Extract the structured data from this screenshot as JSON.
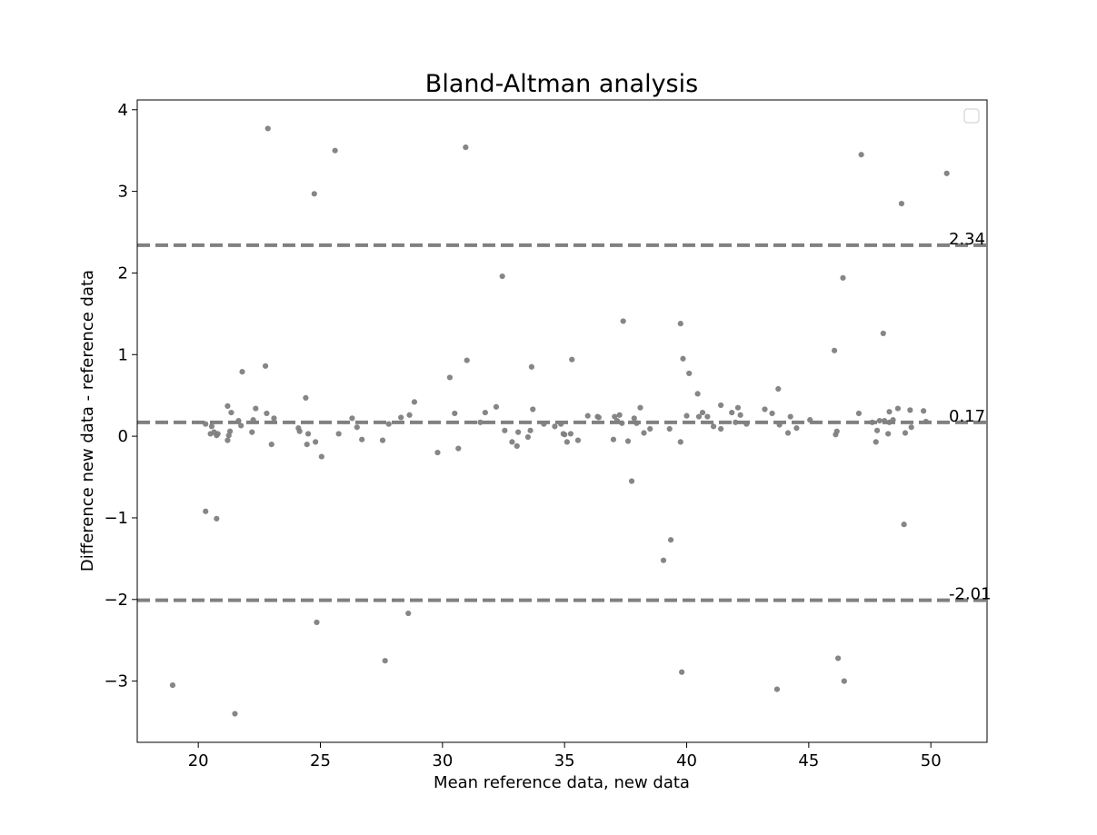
{
  "chart_data": {
    "type": "scatter",
    "title": "Bland-Altman analysis",
    "xlabel": "Mean reference data, new data",
    "ylabel": "Difference new data - reference data",
    "xlim": [
      17.5,
      52.3
    ],
    "ylim": [
      -3.75,
      4.12
    ],
    "x_ticks": [
      20,
      25,
      30,
      35,
      40,
      45,
      50
    ],
    "y_ticks": [
      -3,
      -2,
      -1,
      0,
      1,
      2,
      3,
      4
    ],
    "x_tick_labels": [
      "20",
      "25",
      "30",
      "35",
      "40",
      "45",
      "50"
    ],
    "y_tick_labels": [
      "−3",
      "−2",
      "−1",
      "0",
      "1",
      "2",
      "3",
      "4"
    ],
    "grid": false,
    "legend": "top-right",
    "legend_entries": [],
    "marker_color": "#808080",
    "line_color": "#808080",
    "reference_lines": [
      {
        "value": 2.34,
        "label": "2.34"
      },
      {
        "value": 0.17,
        "label": "0.17"
      },
      {
        "value": -2.01,
        "label": "-2.01"
      }
    ],
    "points": [
      [
        18.95,
        -3.05
      ],
      [
        20.3,
        0.15
      ],
      [
        20.3,
        -0.92
      ],
      [
        20.5,
        0.03
      ],
      [
        20.55,
        0.12
      ],
      [
        20.65,
        0.05
      ],
      [
        20.75,
        0.01
      ],
      [
        20.75,
        -1.01
      ],
      [
        20.8,
        0.03
      ],
      [
        21.2,
        0.37
      ],
      [
        21.2,
        -0.05
      ],
      [
        21.25,
        0.01
      ],
      [
        21.3,
        0.06
      ],
      [
        21.35,
        0.29
      ],
      [
        21.5,
        -3.4
      ],
      [
        21.65,
        0.19
      ],
      [
        21.75,
        0.13
      ],
      [
        21.8,
        0.79
      ],
      [
        22.2,
        0.05
      ],
      [
        22.25,
        0.2
      ],
      [
        22.35,
        0.34
      ],
      [
        22.75,
        0.86
      ],
      [
        22.8,
        0.28
      ],
      [
        22.85,
        3.77
      ],
      [
        23.0,
        -0.1
      ],
      [
        23.1,
        0.22
      ],
      [
        24.1,
        0.1
      ],
      [
        24.15,
        0.06
      ],
      [
        24.4,
        0.47
      ],
      [
        24.45,
        -0.1
      ],
      [
        24.5,
        0.03
      ],
      [
        24.75,
        2.97
      ],
      [
        24.8,
        -0.07
      ],
      [
        24.85,
        -2.28
      ],
      [
        25.05,
        -0.25
      ],
      [
        25.6,
        3.5
      ],
      [
        25.75,
        0.03
      ],
      [
        26.3,
        0.22
      ],
      [
        26.5,
        0.11
      ],
      [
        26.7,
        -0.04
      ],
      [
        27.55,
        -0.05
      ],
      [
        27.65,
        -2.75
      ],
      [
        27.8,
        0.15
      ],
      [
        28.3,
        0.23
      ],
      [
        28.6,
        -2.17
      ],
      [
        28.65,
        0.26
      ],
      [
        28.85,
        0.42
      ],
      [
        29.8,
        -0.2
      ],
      [
        30.3,
        0.72
      ],
      [
        30.5,
        0.28
      ],
      [
        30.65,
        -0.15
      ],
      [
        30.95,
        3.54
      ],
      [
        31.0,
        0.93
      ],
      [
        31.55,
        0.17
      ],
      [
        31.75,
        0.29
      ],
      [
        32.2,
        0.36
      ],
      [
        32.45,
        1.96
      ],
      [
        32.55,
        0.07
      ],
      [
        32.85,
        -0.07
      ],
      [
        33.05,
        -0.12
      ],
      [
        33.1,
        0.05
      ],
      [
        33.5,
        -0.01
      ],
      [
        33.6,
        0.07
      ],
      [
        33.65,
        0.85
      ],
      [
        33.7,
        0.33
      ],
      [
        34.15,
        0.15
      ],
      [
        34.6,
        0.12
      ],
      [
        34.85,
        0.15
      ],
      [
        34.95,
        0.03
      ],
      [
        35.0,
        0.02
      ],
      [
        35.1,
        -0.07
      ],
      [
        35.25,
        0.03
      ],
      [
        35.3,
        0.94
      ],
      [
        35.55,
        -0.05
      ],
      [
        35.95,
        0.25
      ],
      [
        36.35,
        0.24
      ],
      [
        36.4,
        0.23
      ],
      [
        37.0,
        -0.04
      ],
      [
        37.05,
        0.24
      ],
      [
        37.15,
        0.19
      ],
      [
        37.25,
        0.26
      ],
      [
        37.35,
        0.16
      ],
      [
        37.4,
        1.41
      ],
      [
        37.6,
        -0.06
      ],
      [
        37.75,
        -0.55
      ],
      [
        37.85,
        0.22
      ],
      [
        37.95,
        0.16
      ],
      [
        38.1,
        0.35
      ],
      [
        38.25,
        0.04
      ],
      [
        38.5,
        0.09
      ],
      [
        39.05,
        -1.52
      ],
      [
        39.3,
        0.09
      ],
      [
        39.35,
        -1.27
      ],
      [
        39.75,
        1.38
      ],
      [
        39.75,
        -0.07
      ],
      [
        39.8,
        -2.89
      ],
      [
        39.85,
        0.95
      ],
      [
        40.0,
        0.25
      ],
      [
        40.1,
        0.77
      ],
      [
        40.45,
        0.52
      ],
      [
        40.5,
        0.24
      ],
      [
        40.65,
        0.29
      ],
      [
        40.85,
        0.24
      ],
      [
        41.1,
        0.12
      ],
      [
        41.4,
        0.09
      ],
      [
        41.4,
        0.38
      ],
      [
        41.85,
        0.29
      ],
      [
        42.0,
        0.17
      ],
      [
        42.1,
        0.35
      ],
      [
        42.2,
        0.26
      ],
      [
        42.45,
        0.15
      ],
      [
        43.2,
        0.33
      ],
      [
        43.5,
        0.28
      ],
      [
        43.7,
        -3.1
      ],
      [
        43.75,
        0.58
      ],
      [
        43.8,
        0.14
      ],
      [
        44.15,
        0.04
      ],
      [
        44.25,
        0.24
      ],
      [
        44.5,
        0.1
      ],
      [
        45.05,
        0.2
      ],
      [
        46.05,
        1.05
      ],
      [
        46.1,
        0.02
      ],
      [
        46.15,
        0.06
      ],
      [
        46.2,
        -2.72
      ],
      [
        46.4,
        1.94
      ],
      [
        46.45,
        -3.0
      ],
      [
        47.05,
        0.28
      ],
      [
        47.15,
        3.45
      ],
      [
        47.6,
        0.17
      ],
      [
        47.75,
        -0.07
      ],
      [
        47.8,
        0.07
      ],
      [
        47.9,
        0.19
      ],
      [
        48.05,
        1.26
      ],
      [
        48.1,
        0.19
      ],
      [
        48.25,
        0.03
      ],
      [
        48.3,
        0.3
      ],
      [
        48.3,
        0.17
      ],
      [
        48.45,
        0.2
      ],
      [
        48.65,
        0.34
      ],
      [
        48.8,
        2.85
      ],
      [
        48.9,
        -1.08
      ],
      [
        48.95,
        0.04
      ],
      [
        49.15,
        0.32
      ],
      [
        49.2,
        0.11
      ],
      [
        49.7,
        0.31
      ],
      [
        49.8,
        0.18
      ],
      [
        50.65,
        3.22
      ]
    ]
  }
}
